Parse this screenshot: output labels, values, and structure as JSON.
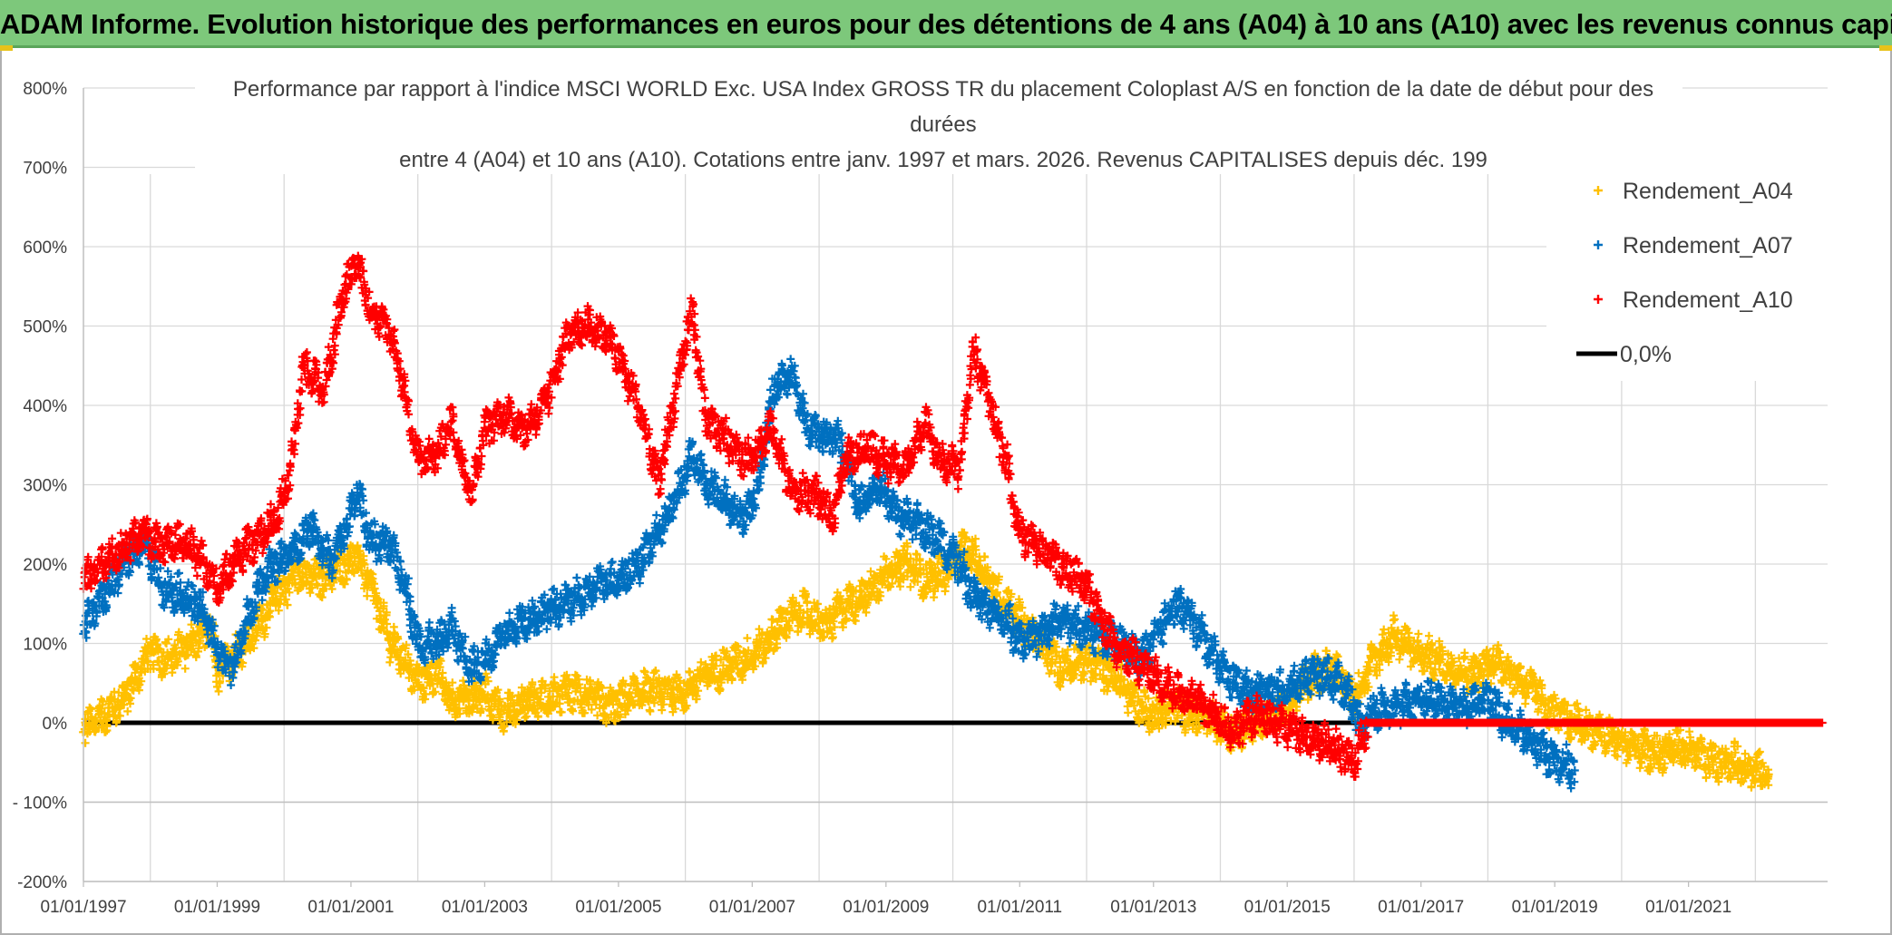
{
  "banner": {
    "title": "ADAM Informe. Evolution historique des performances en euros pour des détentions de 4 ans (A04) à 10 ans (A10) avec les revenus connus capitalisés"
  },
  "colors": {
    "banner_bg": "#7dc87b",
    "a04": "#ffc000",
    "a07": "#0070c0",
    "a10": "#ff0000",
    "zero": "#000000",
    "grid": "#d9d9d9"
  },
  "chart_data": {
    "type": "scatter",
    "title_lines": [
      "Performance par rapport à l'indice MSCI WORLD Exc. USA Index GROSS TR  du placement Coloplast A/S en fonction de la date de début pour des",
      "durées",
      "entre 4 (A04) et 10 ans (A10). Cotations entre janv. 1997 et mars. 2026. Revenus CAPITALISES depuis déc. 199"
    ],
    "xlabel": "",
    "ylabel": "",
    "xlim": [
      "1997-01-01",
      "2023-02-01"
    ],
    "ylim": [
      -200,
      800
    ],
    "y_ticks": [
      -200,
      -100,
      0,
      100,
      200,
      300,
      400,
      500,
      600,
      700,
      800
    ],
    "y_tick_labels": [
      "-200%",
      "- 100%",
      "0%",
      "100%",
      "200%",
      "300%",
      "400%",
      "500%",
      "600%",
      "700%",
      "800%"
    ],
    "x_ticks": [
      1997,
      1999,
      2001,
      2003,
      2005,
      2007,
      2009,
      2011,
      2013,
      2015,
      2017,
      2019,
      2021
    ],
    "x_tick_labels": [
      "01/01/1997",
      "01/01/1999",
      "01/01/2001",
      "01/01/2003",
      "01/01/2005",
      "01/01/2007",
      "01/01/2009",
      "01/01/2011",
      "01/01/2013",
      "01/01/2015",
      "01/01/2017",
      "01/01/2019",
      "01/01/2021"
    ],
    "grid": true,
    "legend_position": "top-right",
    "series": [
      {
        "name": "Rendement_A04",
        "marker": "+",
        "points": [
          [
            1997.0,
            -10
          ],
          [
            1997.3,
            10
          ],
          [
            1997.6,
            30
          ],
          [
            1998.0,
            90
          ],
          [
            1998.3,
            80
          ],
          [
            1998.6,
            100
          ],
          [
            1998.9,
            120
          ],
          [
            1999.0,
            60
          ],
          [
            1999.3,
            90
          ],
          [
            1999.6,
            120
          ],
          [
            1999.9,
            160
          ],
          [
            2000.2,
            190
          ],
          [
            2000.5,
            180
          ],
          [
            2000.9,
            200
          ],
          [
            2001.1,
            210
          ],
          [
            2001.3,
            170
          ],
          [
            2001.6,
            100
          ],
          [
            2001.8,
            80
          ],
          [
            2002.0,
            50
          ],
          [
            2002.3,
            60
          ],
          [
            2002.5,
            30
          ],
          [
            2002.8,
            30
          ],
          [
            2003.0,
            40
          ],
          [
            2003.3,
            10
          ],
          [
            2003.6,
            30
          ],
          [
            2004.0,
            30
          ],
          [
            2004.3,
            40
          ],
          [
            2004.6,
            30
          ],
          [
            2004.9,
            20
          ],
          [
            2005.1,
            30
          ],
          [
            2005.4,
            40
          ],
          [
            2005.7,
            40
          ],
          [
            2006.0,
            40
          ],
          [
            2006.3,
            60
          ],
          [
            2006.6,
            70
          ],
          [
            2006.9,
            80
          ],
          [
            2007.2,
            100
          ],
          [
            2007.5,
            130
          ],
          [
            2007.8,
            140
          ],
          [
            2008.1,
            120
          ],
          [
            2008.4,
            150
          ],
          [
            2008.7,
            160
          ],
          [
            2009.0,
            190
          ],
          [
            2009.3,
            200
          ],
          [
            2009.6,
            180
          ],
          [
            2009.9,
            190
          ],
          [
            2010.2,
            220
          ],
          [
            2010.4,
            200
          ],
          [
            2010.7,
            160
          ],
          [
            2011.0,
            130
          ],
          [
            2011.3,
            100
          ],
          [
            2011.6,
            70
          ],
          [
            2011.9,
            80
          ],
          [
            2012.2,
            70
          ],
          [
            2012.5,
            50
          ],
          [
            2012.8,
            20
          ],
          [
            2013.0,
            10
          ],
          [
            2013.3,
            20
          ],
          [
            2013.6,
            10
          ],
          [
            2013.9,
            0
          ],
          [
            2014.2,
            -10
          ],
          [
            2014.5,
            0
          ],
          [
            2014.8,
            10
          ],
          [
            2015.1,
            30
          ],
          [
            2015.4,
            60
          ],
          [
            2015.7,
            70
          ],
          [
            2016.0,
            30
          ],
          [
            2016.3,
            80
          ],
          [
            2016.6,
            110
          ],
          [
            2016.9,
            90
          ],
          [
            2017.2,
            80
          ],
          [
            2017.5,
            70
          ],
          [
            2017.8,
            60
          ],
          [
            2018.1,
            80
          ],
          [
            2018.4,
            60
          ],
          [
            2018.7,
            40
          ],
          [
            2019.0,
            10
          ],
          [
            2019.3,
            0
          ],
          [
            2019.6,
            -10
          ],
          [
            2019.9,
            -20
          ],
          [
            2020.2,
            -30
          ],
          [
            2020.5,
            -40
          ],
          [
            2020.8,
            -30
          ],
          [
            2021.1,
            -40
          ],
          [
            2021.4,
            -50
          ],
          [
            2021.7,
            -50
          ],
          [
            2022.0,
            -60
          ],
          [
            2022.2,
            -65
          ]
        ]
      },
      {
        "name": "Rendement_A07",
        "marker": "+",
        "points": [
          [
            1997.0,
            120
          ],
          [
            1997.3,
            160
          ],
          [
            1997.6,
            200
          ],
          [
            1997.9,
            230
          ],
          [
            1998.2,
            170
          ],
          [
            1998.5,
            160
          ],
          [
            1998.8,
            140
          ],
          [
            1999.0,
            90
          ],
          [
            1999.2,
            70
          ],
          [
            1999.5,
            140
          ],
          [
            1999.8,
            200
          ],
          [
            2000.1,
            210
          ],
          [
            2000.4,
            250
          ],
          [
            2000.7,
            200
          ],
          [
            2000.9,
            240
          ],
          [
            2001.1,
            290
          ],
          [
            2001.3,
            230
          ],
          [
            2001.6,
            220
          ],
          [
            2001.8,
            180
          ],
          [
            2002.0,
            100
          ],
          [
            2002.3,
            100
          ],
          [
            2002.5,
            120
          ],
          [
            2002.8,
            70
          ],
          [
            2003.0,
            80
          ],
          [
            2003.3,
            110
          ],
          [
            2003.6,
            130
          ],
          [
            2003.9,
            140
          ],
          [
            2004.2,
            150
          ],
          [
            2004.5,
            160
          ],
          [
            2004.8,
            180
          ],
          [
            2005.0,
            180
          ],
          [
            2005.3,
            200
          ],
          [
            2005.6,
            240
          ],
          [
            2005.9,
            290
          ],
          [
            2006.1,
            340
          ],
          [
            2006.3,
            300
          ],
          [
            2006.6,
            280
          ],
          [
            2006.9,
            260
          ],
          [
            2007.1,
            300
          ],
          [
            2007.3,
            420
          ],
          [
            2007.6,
            440
          ],
          [
            2007.8,
            380
          ],
          [
            2008.0,
            360
          ],
          [
            2008.3,
            360
          ],
          [
            2008.6,
            270
          ],
          [
            2008.9,
            300
          ],
          [
            2009.2,
            260
          ],
          [
            2009.5,
            250
          ],
          [
            2009.8,
            230
          ],
          [
            2010.1,
            200
          ],
          [
            2010.3,
            160
          ],
          [
            2010.6,
            140
          ],
          [
            2010.8,
            130
          ],
          [
            2011.0,
            100
          ],
          [
            2011.3,
            110
          ],
          [
            2011.6,
            130
          ],
          [
            2011.9,
            120
          ],
          [
            2012.2,
            110
          ],
          [
            2012.5,
            100
          ],
          [
            2012.8,
            80
          ],
          [
            2013.0,
            100
          ],
          [
            2013.3,
            150
          ],
          [
            2013.5,
            140
          ],
          [
            2013.8,
            100
          ],
          [
            2014.1,
            60
          ],
          [
            2014.4,
            40
          ],
          [
            2014.7,
            40
          ],
          [
            2015.0,
            40
          ],
          [
            2015.3,
            60
          ],
          [
            2015.6,
            60
          ],
          [
            2015.9,
            40
          ],
          [
            2016.1,
            0
          ],
          [
            2016.4,
            20
          ],
          [
            2016.7,
            20
          ],
          [
            2016.9,
            30
          ],
          [
            2017.2,
            30
          ],
          [
            2017.5,
            20
          ],
          [
            2017.8,
            20
          ],
          [
            2018.0,
            30
          ],
          [
            2018.3,
            0
          ],
          [
            2018.6,
            -20
          ],
          [
            2018.9,
            -40
          ],
          [
            2019.1,
            -50
          ],
          [
            2019.3,
            -60
          ]
        ]
      },
      {
        "name": "Rendement_A10",
        "marker": "+",
        "points": [
          [
            1997.0,
            180
          ],
          [
            1997.3,
            200
          ],
          [
            1997.6,
            220
          ],
          [
            1997.9,
            240
          ],
          [
            1998.2,
            220
          ],
          [
            1998.5,
            230
          ],
          [
            1998.8,
            200
          ],
          [
            1999.0,
            170
          ],
          [
            1999.3,
            210
          ],
          [
            1999.6,
            230
          ],
          [
            1999.9,
            260
          ],
          [
            2000.1,
            320
          ],
          [
            2000.3,
            450
          ],
          [
            2000.6,
            420
          ],
          [
            2000.9,
            550
          ],
          [
            2001.1,
            580
          ],
          [
            2001.3,
            520
          ],
          [
            2001.6,
            490
          ],
          [
            2001.8,
            420
          ],
          [
            2002.0,
            330
          ],
          [
            2002.3,
            340
          ],
          [
            2002.5,
            380
          ],
          [
            2002.8,
            290
          ],
          [
            2003.0,
            370
          ],
          [
            2003.3,
            390
          ],
          [
            2003.6,
            370
          ],
          [
            2003.9,
            400
          ],
          [
            2004.2,
            480
          ],
          [
            2004.5,
            500
          ],
          [
            2004.8,
            490
          ],
          [
            2005.0,
            460
          ],
          [
            2005.3,
            400
          ],
          [
            2005.6,
            300
          ],
          [
            2005.9,
            440
          ],
          [
            2006.1,
            520
          ],
          [
            2006.3,
            380
          ],
          [
            2006.6,
            360
          ],
          [
            2006.9,
            330
          ],
          [
            2007.1,
            350
          ],
          [
            2007.3,
            370
          ],
          [
            2007.6,
            290
          ],
          [
            2007.9,
            290
          ],
          [
            2008.2,
            260
          ],
          [
            2008.4,
            330
          ],
          [
            2008.7,
            350
          ],
          [
            2009.0,
            330
          ],
          [
            2009.3,
            320
          ],
          [
            2009.6,
            380
          ],
          [
            2009.8,
            330
          ],
          [
            2010.1,
            320
          ],
          [
            2010.3,
            470
          ],
          [
            2010.5,
            420
          ],
          [
            2010.8,
            330
          ],
          [
            2011.0,
            240
          ],
          [
            2011.3,
            220
          ],
          [
            2011.6,
            200
          ],
          [
            2011.9,
            180
          ],
          [
            2012.2,
            140
          ],
          [
            2012.4,
            100
          ],
          [
            2012.7,
            80
          ],
          [
            2013.0,
            60
          ],
          [
            2013.3,
            40
          ],
          [
            2013.6,
            30
          ],
          [
            2013.9,
            10
          ],
          [
            2014.2,
            -10
          ],
          [
            2014.5,
            10
          ],
          [
            2014.8,
            0
          ],
          [
            2015.1,
            -10
          ],
          [
            2015.4,
            -20
          ],
          [
            2015.7,
            -30
          ],
          [
            2016.0,
            -50
          ],
          [
            2016.2,
            0
          ],
          [
            2016.8,
            0
          ],
          [
            2017.5,
            0
          ],
          [
            2018.2,
            0
          ],
          [
            2018.9,
            0
          ],
          [
            2019.6,
            0
          ],
          [
            2020.3,
            0
          ],
          [
            2021.0,
            0
          ],
          [
            2021.7,
            0
          ],
          [
            2022.4,
            0
          ],
          [
            2023.0,
            0
          ]
        ]
      },
      {
        "name": "0,0%",
        "type": "line",
        "points": [
          [
            1997.0,
            0
          ],
          [
            2023.0,
            0
          ]
        ]
      }
    ]
  }
}
